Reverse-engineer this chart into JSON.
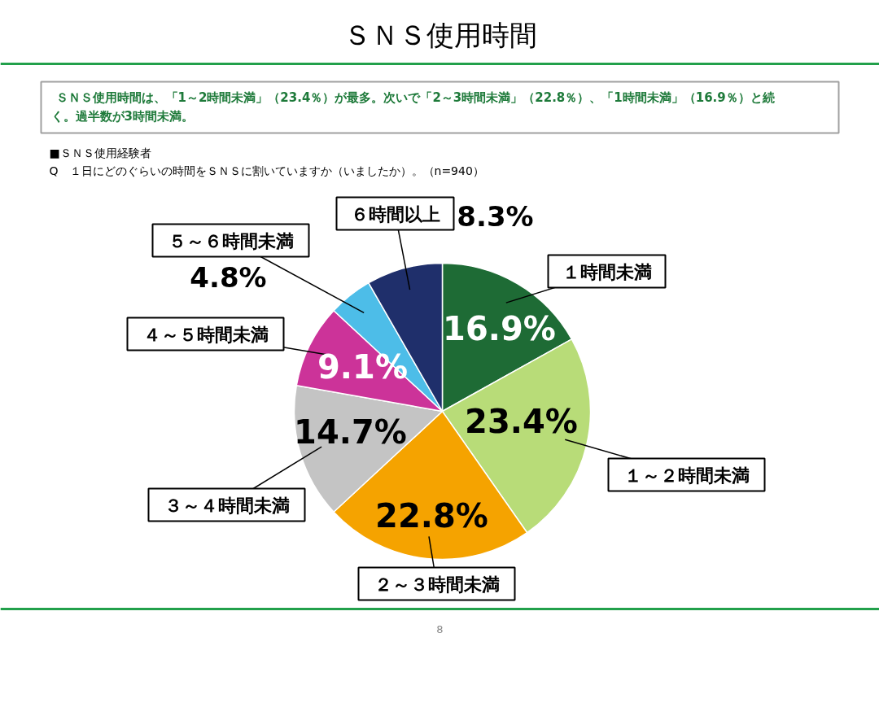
{
  "chart_data": {
    "type": "pie",
    "title": "ＳＮＳ使用時間",
    "subtitle": "ＳＮＳ使用時間は、「1～2時間未満」（23.4％）が最多。次いで「2～3時間未満」（22.8％）、「1時間未満」（16.9％）と続く。過半数が3時間未満。",
    "annotations": [
      "■ＳＮＳ使用経験者",
      "Q　１日にどのぐらいの時間をＳＮＳに割いていますか（いましたか）。（n=940）",
      "8"
    ],
    "categories": [
      "１時間未満",
      "１～２時間未満",
      "２～３時間未満",
      "３～４時間未満",
      "４～５時間未満",
      "５～６時間未満",
      "６時間以上"
    ],
    "values": [
      16.9,
      23.4,
      22.8,
      14.7,
      9.1,
      4.8,
      8.3
    ],
    "colors": [
      "#1e6b35",
      "#b8dc78",
      "#f5a300",
      "#c4c4c4",
      "#cc3399",
      "#4dbde8",
      "#1f2f6b"
    ],
    "value_labels": [
      "16.9%",
      "23.4%",
      "22.8%",
      "14.7%",
      "9.1%",
      "4.8%",
      "8.3%"
    ]
  }
}
